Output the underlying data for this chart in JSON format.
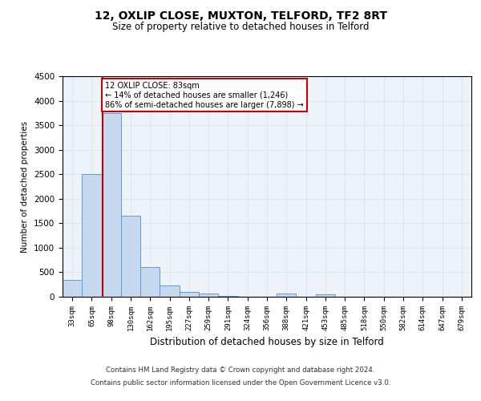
{
  "title1": "12, OXLIP CLOSE, MUXTON, TELFORD, TF2 8RT",
  "title2": "Size of property relative to detached houses in Telford",
  "xlabel": "Distribution of detached houses by size in Telford",
  "ylabel": "Number of detached properties",
  "categories": [
    "33sqm",
    "65sqm",
    "98sqm",
    "130sqm",
    "162sqm",
    "195sqm",
    "227sqm",
    "259sqm",
    "291sqm",
    "324sqm",
    "356sqm",
    "388sqm",
    "421sqm",
    "453sqm",
    "485sqm",
    "518sqm",
    "550sqm",
    "582sqm",
    "614sqm",
    "647sqm",
    "679sqm"
  ],
  "values": [
    350,
    2500,
    3750,
    1650,
    600,
    225,
    100,
    60,
    10,
    5,
    5,
    60,
    5,
    50,
    0,
    0,
    0,
    0,
    0,
    0,
    0
  ],
  "bar_color": "#c6d9f0",
  "bar_edge_color": "#5b9bd5",
  "vline_color": "#cc0000",
  "annotation_text": "12 OXLIP CLOSE: 83sqm\n← 14% of detached houses are smaller (1,246)\n86% of semi-detached houses are larger (7,898) →",
  "annotation_box_color": "#ffffff",
  "annotation_box_edge": "#cc0000",
  "ylim": [
    0,
    4500
  ],
  "yticks": [
    0,
    500,
    1000,
    1500,
    2000,
    2500,
    3000,
    3500,
    4000,
    4500
  ],
  "footer1": "Contains HM Land Registry data © Crown copyright and database right 2024.",
  "footer2": "Contains public sector information licensed under the Open Government Licence v3.0.",
  "bg_color": "#ffffff",
  "grid_color": "#dce6f1",
  "ax_bg_color": "#eef3fa"
}
